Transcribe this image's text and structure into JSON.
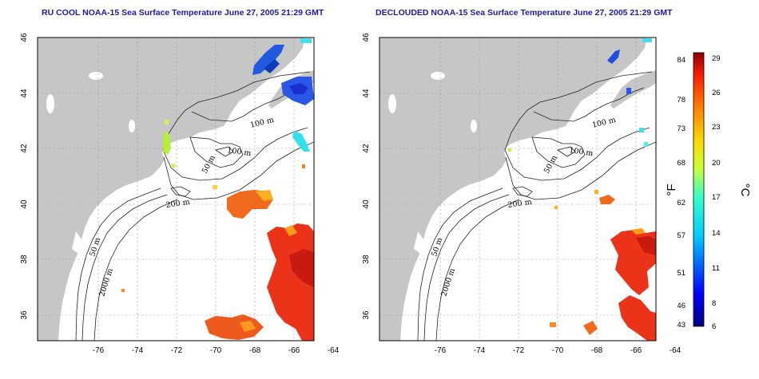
{
  "maps": [
    {
      "title": "RU COOL NOAA-15 Sea Surface Temperature June 27, 2005 21:29 GMT",
      "contour_labels": [
        "100 m",
        "100 m",
        "50 m",
        "200 m",
        "50 m",
        "2000 m"
      ]
    },
    {
      "title": "DECLOUDED NOAA-15 Sea Surface Temperature June 27, 2005 21:29 GMT",
      "contour_labels": [
        "100 m",
        "100 m",
        "50 m",
        "200 m",
        "50 m",
        "2000 m"
      ]
    }
  ],
  "axes": {
    "x_ticks": [
      "-76",
      "-74",
      "-72",
      "-70",
      "-68",
      "-66",
      "-64"
    ],
    "y_ticks": [
      "46",
      "44",
      "42",
      "40",
      "38",
      "36"
    ]
  },
  "colorbar": {
    "fahrenheit_label": "°F",
    "celsius_label": "°C",
    "fahrenheit_ticks": [
      "84",
      "78",
      "73",
      "68",
      "62",
      "57",
      "51",
      "46",
      "43"
    ],
    "celsius_ticks": [
      "29",
      "26",
      "23",
      "20",
      "17",
      "14",
      "11",
      "8",
      "6"
    ],
    "colors": [
      "#00007f",
      "#0000ff",
      "#007fff",
      "#00ffff",
      "#7fff7f",
      "#ffff00",
      "#ff7f00",
      "#ff0000",
      "#7f0000"
    ]
  },
  "colors": {
    "land": "#c6c6c6",
    "ocean": "#ffffff",
    "title": "#1a1aa6",
    "grid": "#9a9a9a"
  }
}
